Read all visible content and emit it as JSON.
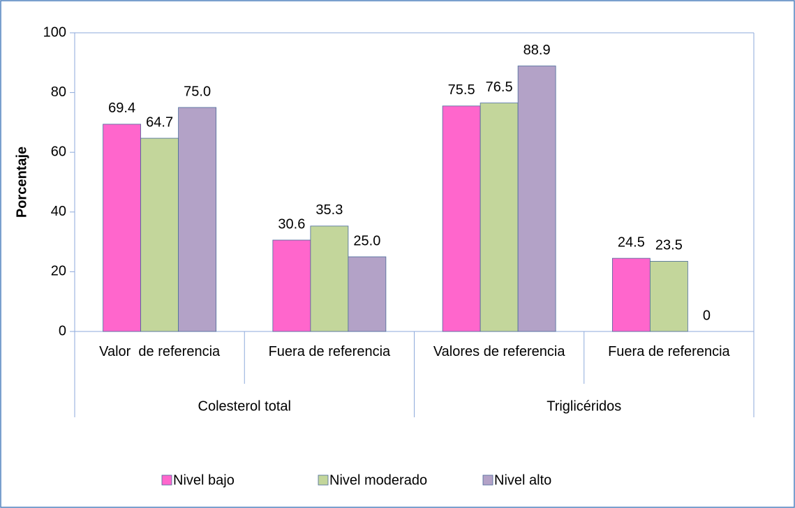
{
  "chart_data": {
    "type": "bar",
    "y_label": "Porcentaje",
    "groups": [
      {
        "name": "Colesterol total",
        "categories": [
          "Valor  de referencia",
          "Fuera de referencia"
        ]
      },
      {
        "name": "Triglicéridos",
        "categories": [
          "Valores de referencia",
          "Fuera de referencia"
        ]
      }
    ],
    "series": [
      {
        "name": "Nivel bajo",
        "color": "#ff66cc",
        "values": [
          69.4,
          30.6,
          75.5,
          24.5
        ]
      },
      {
        "name": "Nivel moderado",
        "color": "#c3d69b",
        "values": [
          64.7,
          35.3,
          76.5,
          23.5
        ]
      },
      {
        "name": "Nivel alto",
        "color": "#b3a2c7",
        "values": [
          75.0,
          25.0,
          88.9,
          0
        ],
        "value_labels": [
          "75.0",
          "25.0",
          "88.9",
          "0"
        ]
      }
    ],
    "ylim": [
      0,
      100
    ],
    "yticks": [
      0,
      20,
      40,
      60,
      80,
      100
    ],
    "grid": false,
    "legend": "bottom"
  }
}
